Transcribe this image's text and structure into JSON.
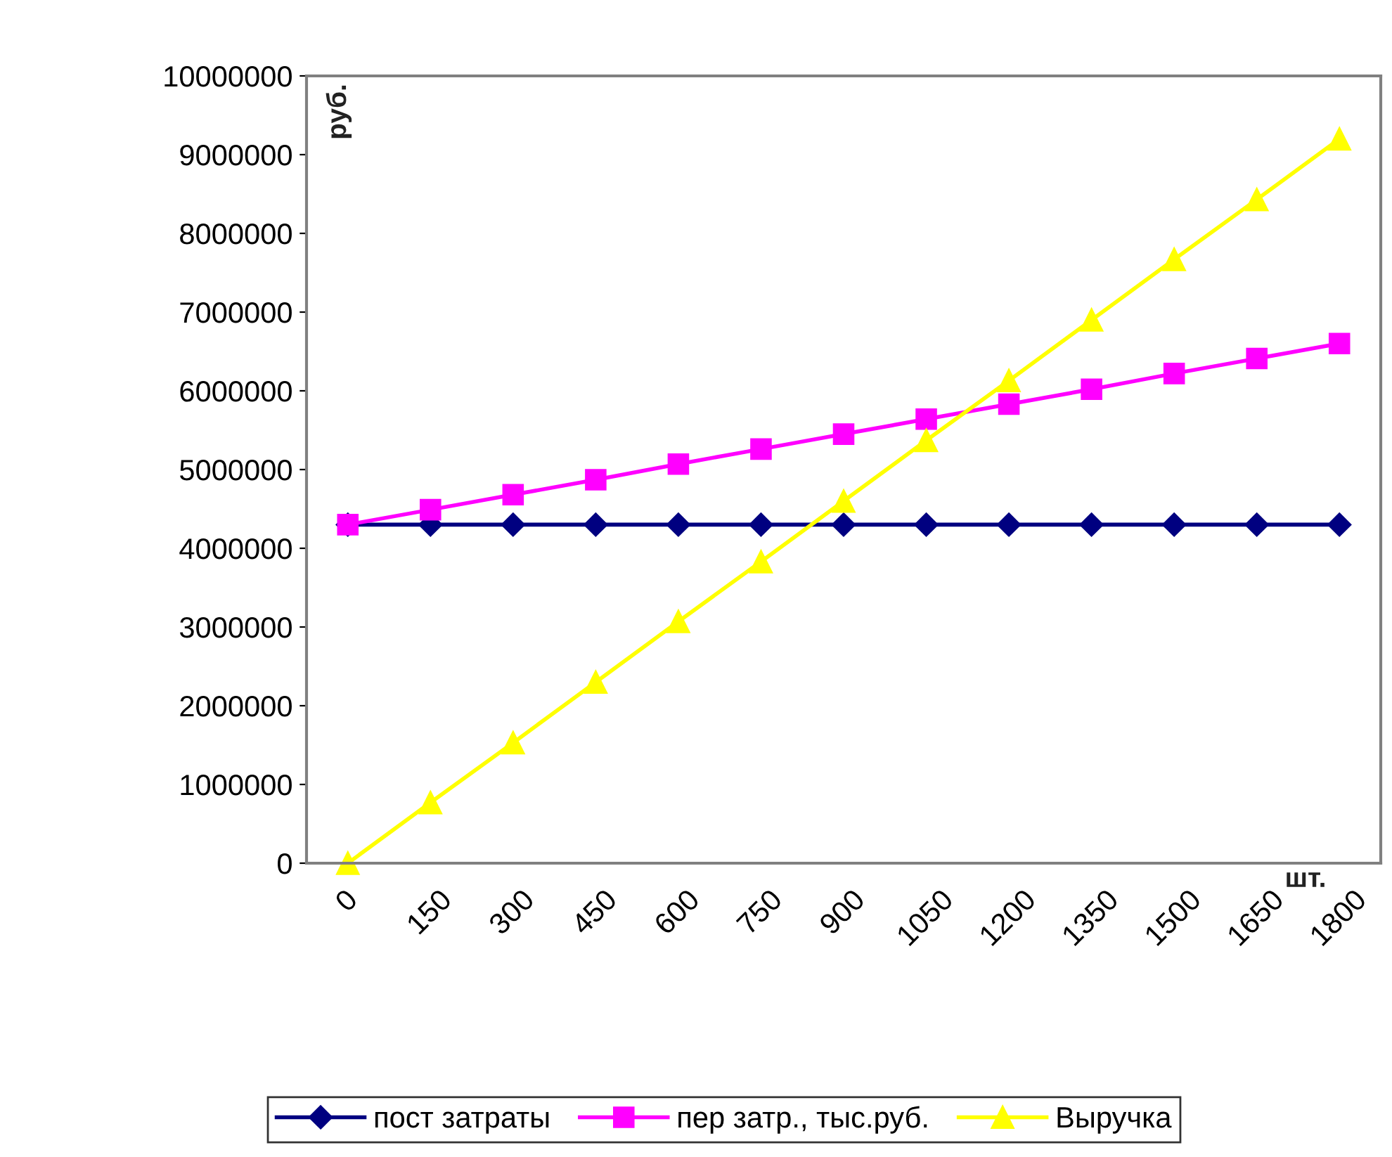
{
  "chart_data": {
    "type": "line",
    "ylabel": "руб.",
    "xlabel": "шт.",
    "categories": [
      "0",
      "150",
      "300",
      "450",
      "600",
      "750",
      "900",
      "1050",
      "1200",
      "1350",
      "1500",
      "1650",
      "1800"
    ],
    "series": [
      {
        "name": "пост затраты",
        "color": "#000080",
        "marker": "diamond",
        "values": [
          4300000,
          4300000,
          4300000,
          4300000,
          4300000,
          4300000,
          4300000,
          4300000,
          4300000,
          4300000,
          4300000,
          4300000,
          4300000
        ]
      },
      {
        "name": "пер затр., тыс.руб.",
        "color": "#ff00ff",
        "marker": "square",
        "values": [
          4300000,
          4490000,
          4680000,
          4870000,
          5070000,
          5260000,
          5450000,
          5640000,
          5830000,
          6020000,
          6220000,
          6410000,
          6600000
        ]
      },
      {
        "name": "Выручка",
        "color": "#ffff00",
        "marker": "triangle",
        "values": [
          0,
          770000,
          1530000,
          2300000,
          3070000,
          3830000,
          4600000,
          5370000,
          6130000,
          6900000,
          7670000,
          8430000,
          9200000
        ]
      }
    ],
    "ylim": [
      0,
      10000000
    ],
    "yticks": [
      0,
      1000000,
      2000000,
      3000000,
      4000000,
      5000000,
      6000000,
      7000000,
      8000000,
      9000000,
      10000000
    ],
    "grid": false,
    "legend": "bottom"
  }
}
